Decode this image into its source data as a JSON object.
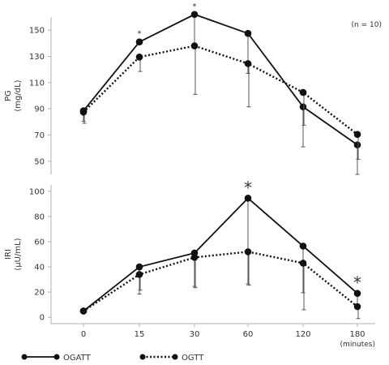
{
  "figure": {
    "note": "(n = 10)",
    "x_unit": "(minutes)"
  },
  "chart_data": [
    {
      "type": "line",
      "title": "",
      "ylabel": "PG (mg/dL)",
      "ylabel_lines": [
        "PG",
        "(mg/dL)"
      ],
      "xlabel": "(minutes)",
      "categories": [
        "0",
        "15",
        "30",
        "60",
        "120",
        "180"
      ],
      "ylim": [
        40,
        160
      ],
      "yticks": [
        50,
        70,
        90,
        110,
        130,
        150
      ],
      "grid": false,
      "series": [
        {
          "name": "OGATT",
          "style": "solid",
          "values": [
            88.5,
            141,
            162,
            147.5,
            91.5,
            62.5
          ],
          "err_low": [
            80.5,
            140,
            140,
            117,
            61,
            40
          ],
          "err_high": [
            88.5,
            141,
            162,
            147.5,
            91.5,
            62.5
          ],
          "significance": [
            "",
            "*",
            "*",
            "",
            "",
            ""
          ]
        },
        {
          "name": "OGTT",
          "style": "dotted",
          "values": [
            87.5,
            129.5,
            138,
            124.5,
            102.5,
            70.5
          ],
          "err_low": [
            79,
            118.5,
            101,
            91.5,
            77.5,
            51.5
          ],
          "err_high": [
            87.5,
            129.5,
            138,
            124.5,
            102.5,
            70.5
          ],
          "significance": [
            "",
            "",
            "",
            "",
            "",
            ""
          ]
        }
      ]
    },
    {
      "type": "line",
      "title": "",
      "ylabel": "IRI (μU/mL)",
      "ylabel_lines": [
        "IRI",
        "(μU/mL)"
      ],
      "xlabel": "(minutes)",
      "categories": [
        "0",
        "15",
        "30",
        "60",
        "120",
        "180"
      ],
      "ylim": [
        -5,
        105
      ],
      "yticks": [
        0,
        20,
        40,
        60,
        80,
        100
      ],
      "grid": false,
      "series": [
        {
          "name": "OGATT",
          "style": "solid",
          "values": [
            5,
            40,
            51,
            94.5,
            56.5,
            19
          ],
          "err_low": [
            5,
            18.5,
            24.5,
            26.5,
            19.5,
            7
          ],
          "err_high": [
            5,
            40,
            51,
            94.5,
            56.5,
            19
          ],
          "significance": [
            "",
            "",
            "",
            "*",
            "",
            "*"
          ]
        },
        {
          "name": "OGTT",
          "style": "dotted",
          "values": [
            5,
            34,
            47.5,
            52,
            43,
            8.5
          ],
          "err_low": [
            5,
            21.5,
            23.5,
            25.5,
            6,
            -1
          ],
          "err_high": [
            5,
            34,
            47.5,
            52,
            43,
            8.5
          ],
          "significance": [
            "",
            "",
            "",
            "",
            "",
            ""
          ]
        }
      ]
    }
  ],
  "legend": {
    "items": [
      {
        "label": "OGATT",
        "style": "solid"
      },
      {
        "label": "OGTT",
        "style": "dotted"
      }
    ]
  },
  "colors": {
    "line": "#111111",
    "axis": "#b0b0b0",
    "text": "#333333"
  }
}
